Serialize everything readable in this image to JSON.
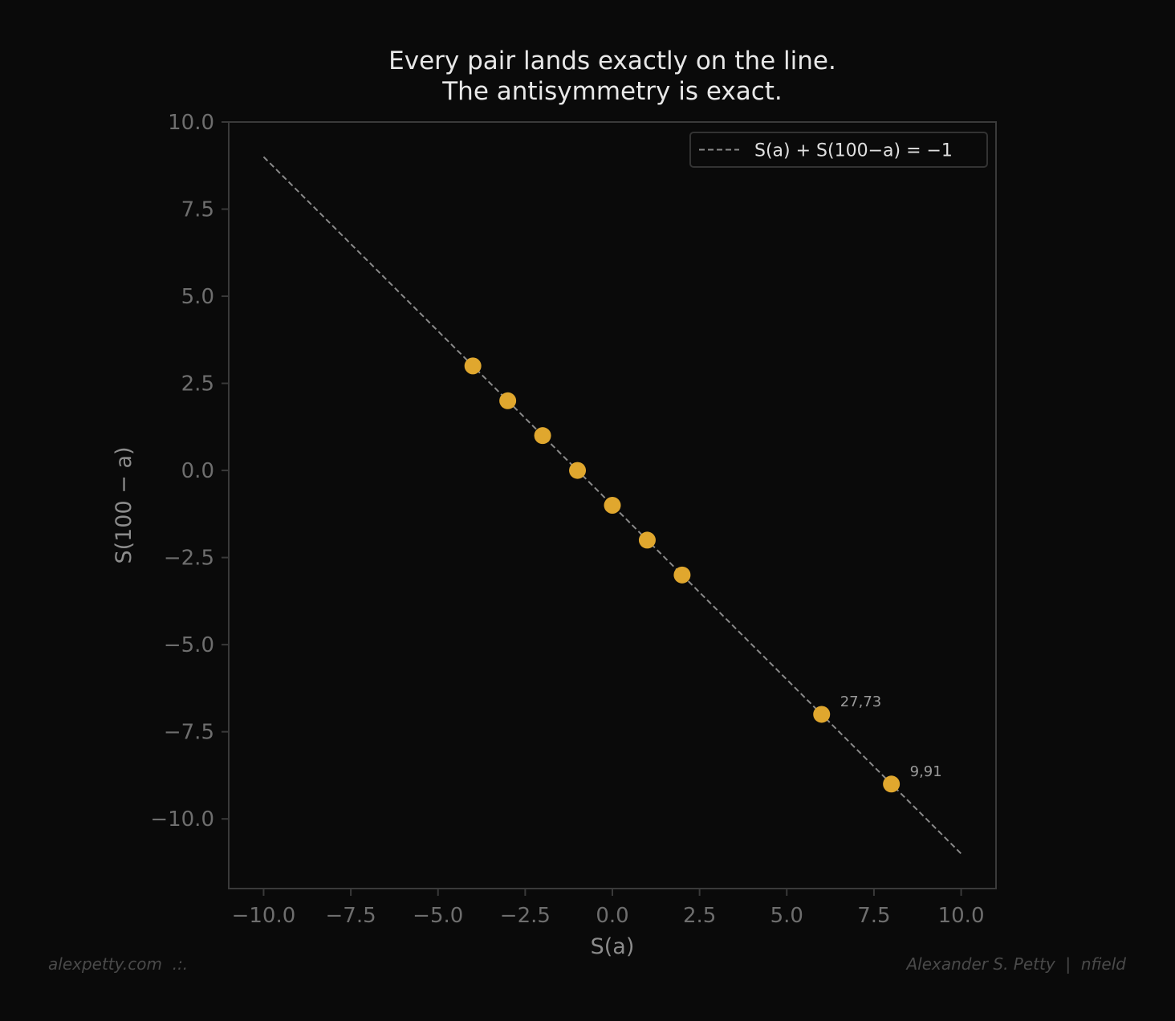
{
  "chart_data": {
    "type": "scatter",
    "title": [
      "Every pair lands exactly on the line.",
      "The antisymmetry is exact."
    ],
    "xlabel": "S(a)",
    "ylabel": "S(100 − a)",
    "xlim": [
      -11,
      11
    ],
    "ylim": [
      -12,
      10
    ],
    "x_ticks": [
      -10,
      -7.5,
      -5,
      -2.5,
      0,
      2.5,
      5,
      7.5,
      10
    ],
    "x_tick_labels": [
      "−10.0",
      "−7.5",
      "−5.0",
      "−2.5",
      "0.0",
      "2.5",
      "5.0",
      "7.5",
      "10.0"
    ],
    "y_ticks": [
      10,
      7.5,
      5,
      2.5,
      0,
      -2.5,
      -5,
      -7.5,
      -10
    ],
    "y_tick_labels": [
      "10.0",
      "7.5",
      "5.0",
      "2.5",
      "0.0",
      "−2.5",
      "−5.0",
      "−7.5",
      "−10.0"
    ],
    "grid": false,
    "reference_line": {
      "label": "S(a) + S(100−a) = −1",
      "x": [
        -10,
        10
      ],
      "y": [
        9,
        -11
      ],
      "style": "dashed",
      "color": "#8a8a8a"
    },
    "legend_position": "top-right",
    "points": [
      {
        "x": -4,
        "y": 3
      },
      {
        "x": -3,
        "y": 2
      },
      {
        "x": -2,
        "y": 1
      },
      {
        "x": -1,
        "y": 0
      },
      {
        "x": 0,
        "y": -1
      },
      {
        "x": 1,
        "y": -2
      },
      {
        "x": 2,
        "y": -3
      },
      {
        "x": 6,
        "y": -7,
        "label": "27,73"
      },
      {
        "x": 8,
        "y": -9,
        "label": "9,91"
      }
    ],
    "point_color": "#e0a72e"
  },
  "colors": {
    "background": "#0a0a0a",
    "axis": "#3a3a3a",
    "tick_label": "#6e6e6e",
    "axis_label": "#8c8c8c",
    "title": "#e8e8e8",
    "legend_text": "#e0e0e0",
    "annotation": "#9a9a9a"
  },
  "footer": {
    "left": "alexpetty.com  .:.",
    "right": "Alexander S. Petty  |  nfield"
  }
}
